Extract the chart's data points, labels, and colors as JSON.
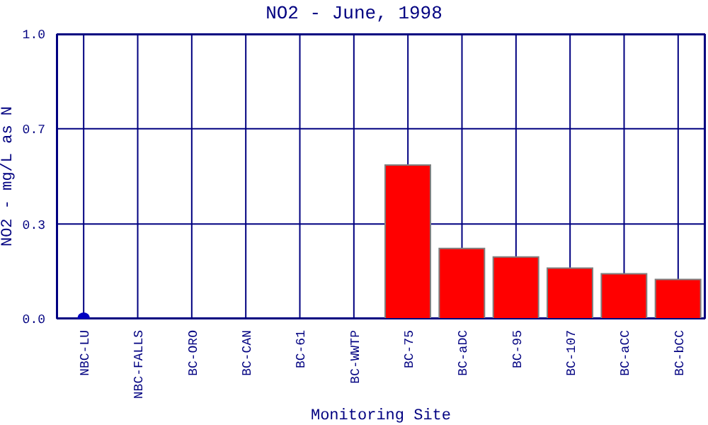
{
  "chart_data": {
    "type": "bar",
    "title": "NO2 - June, 1998",
    "xlabel": "Monitoring Site",
    "ylabel": "NO2 - mg/L as N",
    "categories": [
      "NBC-LU",
      "NBC-FALLS",
      "BC-ORO",
      "BC-CAN",
      "BC-61",
      "BC-WWTP",
      "BC-75",
      "BC-aDC",
      "BC-95",
      "BC-107",
      "BC-aCC",
      "BC-bCC"
    ],
    "series": [
      {
        "color": "#ff0000",
        "values": [
          0,
          0,
          0,
          0,
          0,
          0,
          0.54,
          0.247,
          0.217,
          0.178,
          0.158,
          0.138
        ]
      },
      {
        "type": "scatter",
        "color": "#0000c0",
        "x": [
          "NBC-LU"
        ],
        "values": [
          0
        ]
      }
    ],
    "ylim": [
      0,
      1
    ],
    "yticks": [
      {
        "value": 0,
        "label": "0.0"
      },
      {
        "value": 0.333,
        "label": "0.3"
      },
      {
        "value": 0.667,
        "label": "0.7"
      },
      {
        "value": 1,
        "label": "1.0"
      }
    ],
    "grid": true,
    "marker": "circle",
    "legend": false
  }
}
